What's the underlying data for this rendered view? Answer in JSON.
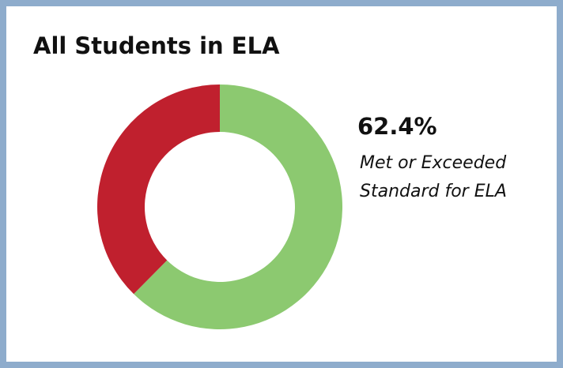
{
  "chart_data": {
    "type": "donut",
    "title": "All Students in ELA",
    "values": [
      62.4,
      37.6
    ],
    "colors": [
      "#8cc970",
      "#c0202e"
    ],
    "value_labels": [
      "62.4%",
      null
    ],
    "annotation": [
      "Met or Exceeded",
      "Standard for ELA"
    ]
  }
}
